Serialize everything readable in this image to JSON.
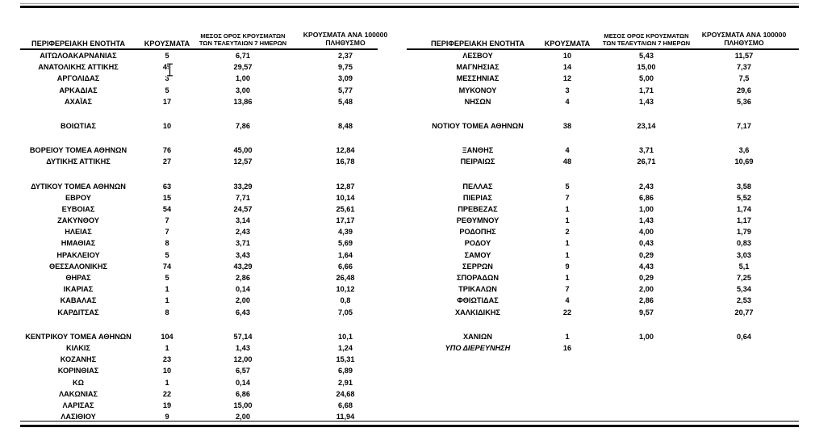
{
  "page": {
    "background": "#ffffff",
    "rule_color": "#000000",
    "top_rule_shadow_color": "#a3a3a3",
    "text_color": "#000000"
  },
  "headers": {
    "regional_unit": "ΠΕΡΙΦΕΡΕΙΑΚΗ ΕΝΟΤΗΤΑ",
    "cases": "ΚΡΟΥΣΜΑΤΑ",
    "avg7_line1": "ΜΕΣΟΣ ΟΡΟΣ ΚΡΟΥΣΜΑΤΩΝ",
    "avg7_line2": "ΤΩΝ ΤΕΛΕΥΤΑΙΩΝ 7 ΗΜΕΡΩΝ",
    "per100k_line1": "ΚΡΟΥΣΜΑΤΑ ΑΝΑ 100000",
    "per100k_line2": "ΠΛΗΘΥΣΜΟ"
  },
  "cursor": {
    "icon": "text-ibeam-cursor"
  },
  "tables": {
    "left": {
      "rows": [
        {
          "name": "ΑΙΤΩΛΟΑΚΑΡΝΑΝΙΑΣ",
          "cases": "5",
          "avg7": "6,71",
          "per100k": "2,37"
        },
        {
          "name": "ΑΝΑΤΟΛΙΚΗΣ ΑΤΤΙΚΗΣ",
          "cases": "49",
          "avg7": "29,57",
          "per100k": "9,75"
        },
        {
          "name": "ΑΡΓΟΛΙΔΑΣ",
          "cases": "3",
          "avg7": "1,00",
          "per100k": "3,09"
        },
        {
          "name": "ΑΡΚΑΔΙΑΣ",
          "cases": "5",
          "avg7": "3,00",
          "per100k": "5,77"
        },
        {
          "name": "ΑΧΑΪΑΣ",
          "cases": "17",
          "avg7": "13,86",
          "per100k": "5,48"
        },
        {
          "blank": true
        },
        {
          "name": "ΒΟΙΩΤΙΑΣ",
          "cases": "10",
          "avg7": "7,86",
          "per100k": "8,48"
        },
        {
          "blank": true
        },
        {
          "name": "ΒΟΡΕΙΟΥ ΤΟΜΕΑ ΑΘΗΝΩΝ",
          "cases": "76",
          "avg7": "45,00",
          "per100k": "12,84"
        },
        {
          "name": "ΔΥΤΙΚΗΣ ΑΤΤΙΚΗΣ",
          "cases": "27",
          "avg7": "12,57",
          "per100k": "16,78"
        },
        {
          "blank": true
        },
        {
          "name": "ΔΥΤΙΚΟΥ ΤΟΜΕΑ ΑΘΗΝΩΝ",
          "cases": "63",
          "avg7": "33,29",
          "per100k": "12,87"
        },
        {
          "name": "ΕΒΡΟΥ",
          "cases": "15",
          "avg7": "7,71",
          "per100k": "10,14"
        },
        {
          "name": "ΕΥΒΟΙΑΣ",
          "cases": "54",
          "avg7": "24,57",
          "per100k": "25,61"
        },
        {
          "name": "ΖΑΚΥΝΘΟΥ",
          "cases": "7",
          "avg7": "3,14",
          "per100k": "17,17"
        },
        {
          "name": "ΗΛΕΙΑΣ",
          "cases": "7",
          "avg7": "2,43",
          "per100k": "4,39"
        },
        {
          "name": "ΗΜΑΘΙΑΣ",
          "cases": "8",
          "avg7": "3,71",
          "per100k": "5,69"
        },
        {
          "name": "ΗΡΑΚΛΕΙΟΥ",
          "cases": "5",
          "avg7": "3,43",
          "per100k": "1,64"
        },
        {
          "name": "ΘΕΣΣΑΛΟΝΙΚΗΣ",
          "cases": "74",
          "avg7": "43,29",
          "per100k": "6,66"
        },
        {
          "name": "ΘΗΡΑΣ",
          "cases": "5",
          "avg7": "2,86",
          "per100k": "26,48"
        },
        {
          "name": "ΙΚΑΡΙΑΣ",
          "cases": "1",
          "avg7": "0,14",
          "per100k": "10,12"
        },
        {
          "name": "ΚΑΒΑΛΑΣ",
          "cases": "1",
          "avg7": "2,00",
          "per100k": "0,8"
        },
        {
          "name": "ΚΑΡΔΙΤΣΑΣ",
          "cases": "8",
          "avg7": "6,43",
          "per100k": "7,05"
        },
        {
          "blank": true
        },
        {
          "name": "ΚΕΝΤΡΙΚΟΥ ΤΟΜΕΑ ΑΘΗΝΩΝ",
          "cases": "104",
          "avg7": "57,14",
          "per100k": "10,1"
        },
        {
          "name": "ΚΙΛΚΙΣ",
          "cases": "1",
          "avg7": "1,43",
          "per100k": "1,24"
        },
        {
          "name": "ΚΟΖΑΝΗΣ",
          "cases": "23",
          "avg7": "12,00",
          "per100k": "15,31"
        },
        {
          "name": "ΚΟΡΙΝΘΙΑΣ",
          "cases": "10",
          "avg7": "6,57",
          "per100k": "6,89"
        },
        {
          "name": "ΚΩ",
          "cases": "1",
          "avg7": "0,14",
          "per100k": "2,91"
        },
        {
          "name": "ΛΑΚΩΝΙΑΣ",
          "cases": "22",
          "avg7": "6,86",
          "per100k": "24,68"
        },
        {
          "name": "ΛΑΡΙΣΑΣ",
          "cases": "19",
          "avg7": "15,00",
          "per100k": "6,68"
        },
        {
          "name": "ΛΑΣΙΘΙΟΥ",
          "cases": "9",
          "avg7": "2,00",
          "per100k": "11,94"
        }
      ]
    },
    "right": {
      "rows": [
        {
          "name": "ΛΕΣΒΟΥ",
          "cases": "10",
          "avg7": "5,43",
          "per100k": "11,57"
        },
        {
          "name": "ΜΑΓΝΗΣΙΑΣ",
          "cases": "14",
          "avg7": "15,00",
          "per100k": "7,37"
        },
        {
          "name": "ΜΕΣΣΗΝΙΑΣ",
          "cases": "12",
          "avg7": "5,00",
          "per100k": "7,5"
        },
        {
          "name": "ΜΥΚΟΝΟΥ",
          "cases": "3",
          "avg7": "1,71",
          "per100k": "29,6"
        },
        {
          "name": "ΝΗΣΩΝ",
          "cases": "4",
          "avg7": "1,43",
          "per100k": "5,36"
        },
        {
          "blank": true
        },
        {
          "name": "ΝΟΤΙΟΥ ΤΟΜΕΑ ΑΘΗΝΩΝ",
          "cases": "38",
          "avg7": "23,14",
          "per100k": "7,17"
        },
        {
          "blank": true
        },
        {
          "name": "ΞΑΝΘΗΣ",
          "cases": "4",
          "avg7": "3,71",
          "per100k": "3,6"
        },
        {
          "name": "ΠΕΙΡΑΙΩΣ",
          "cases": "48",
          "avg7": "26,71",
          "per100k": "10,69"
        },
        {
          "blank": true
        },
        {
          "name": "ΠΕΛΛΑΣ",
          "cases": "5",
          "avg7": "2,43",
          "per100k": "3,58"
        },
        {
          "name": "ΠΙΕΡΙΑΣ",
          "cases": "7",
          "avg7": "6,86",
          "per100k": "5,52"
        },
        {
          "name": "ΠΡΕΒΕΖΑΣ",
          "cases": "1",
          "avg7": "1,00",
          "per100k": "1,74"
        },
        {
          "name": "ΡΕΘΥΜΝΟΥ",
          "cases": "1",
          "avg7": "1,43",
          "per100k": "1,17"
        },
        {
          "name": "ΡΟΔΟΠΗΣ",
          "cases": "2",
          "avg7": "4,00",
          "per100k": "1,79"
        },
        {
          "name": "ΡΟΔΟΥ",
          "cases": "1",
          "avg7": "0,43",
          "per100k": "0,83"
        },
        {
          "name": "ΣΑΜΟΥ",
          "cases": "1",
          "avg7": "0,29",
          "per100k": "3,03"
        },
        {
          "name": "ΣΕΡΡΩΝ",
          "cases": "9",
          "avg7": "4,43",
          "per100k": "5,1"
        },
        {
          "name": "ΣΠΟΡΑΔΩΝ",
          "cases": "1",
          "avg7": "0,29",
          "per100k": "7,25"
        },
        {
          "name": "ΤΡΙΚΑΛΩΝ",
          "cases": "7",
          "avg7": "2,00",
          "per100k": "5,34"
        },
        {
          "name": "ΦΘΙΩΤΙΔΑΣ",
          "cases": "4",
          "avg7": "2,86",
          "per100k": "2,53"
        },
        {
          "name": "ΧΑΛΚΙΔΙΚΗΣ",
          "cases": "22",
          "avg7": "9,57",
          "per100k": "20,77"
        },
        {
          "blank": true
        },
        {
          "name": "ΧΑΝΙΩΝ",
          "cases": "1",
          "avg7": "1,00",
          "per100k": "0,64"
        },
        {
          "name": "ΥΠΟ ΔΙΕΡΕΥΝΗΣΗ",
          "cases": "16",
          "avg7": "",
          "per100k": "",
          "italic": true
        }
      ]
    }
  }
}
